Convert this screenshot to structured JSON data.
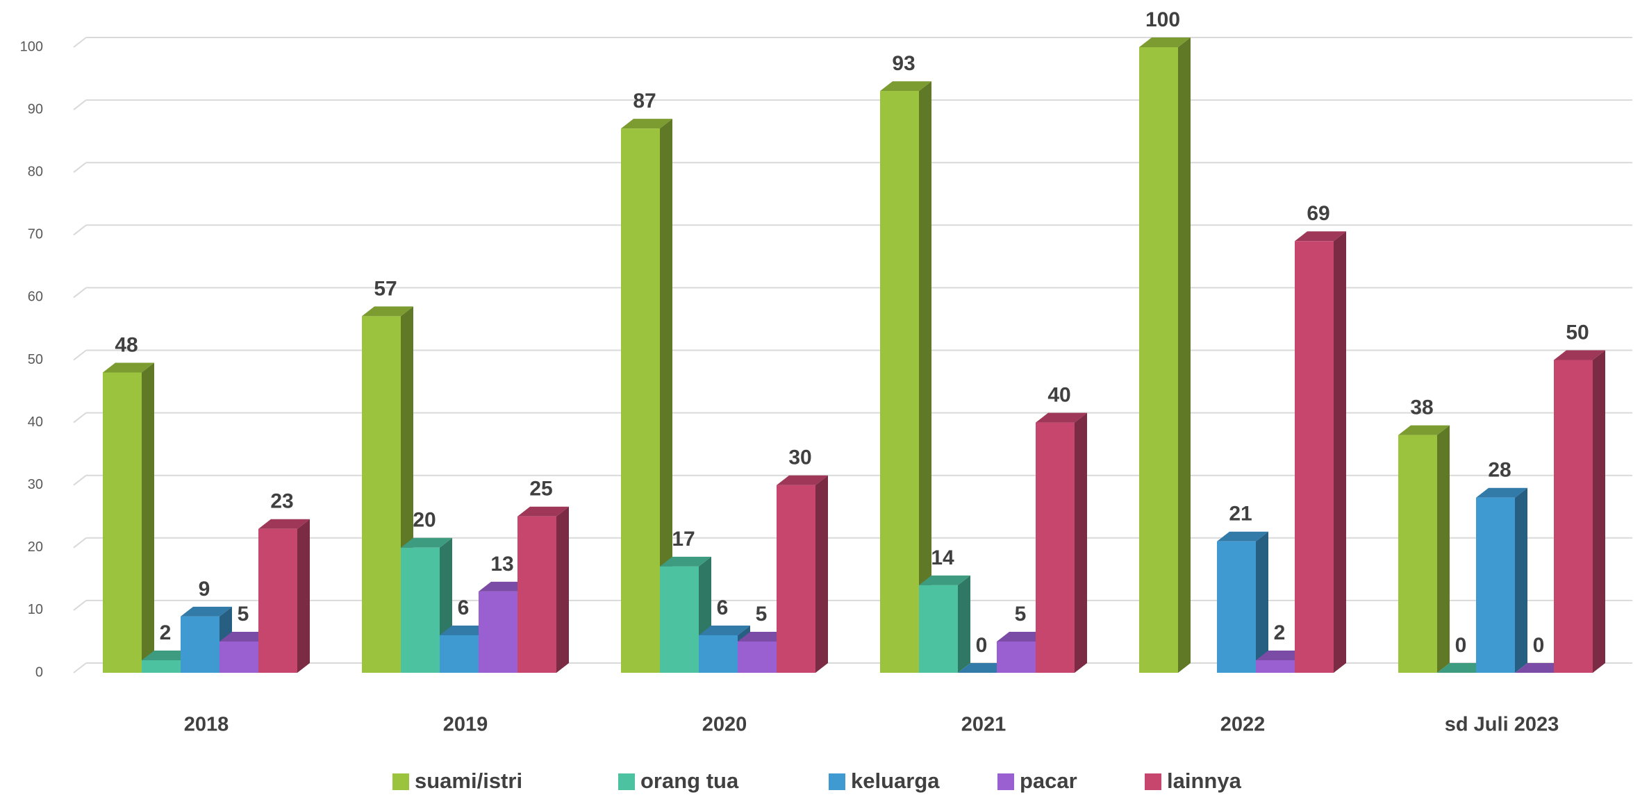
{
  "chart_data": {
    "type": "bar3d",
    "categories": [
      "2018",
      "2019",
      "2020",
      "2021",
      "2022",
      "sd Juli 2023"
    ],
    "series": [
      {
        "name": "suami/istri",
        "color": "#9bc33d",
        "values": [
          48,
          57,
          87,
          93,
          100,
          38
        ]
      },
      {
        "name": "orang tua",
        "color": "#4cc2a0",
        "values": [
          2,
          20,
          17,
          14,
          null,
          0
        ]
      },
      {
        "name": "keluarga",
        "color": "#3f9ad2",
        "values": [
          9,
          6,
          6,
          0,
          21,
          28
        ]
      },
      {
        "name": "pacar",
        "color": "#9a5fd0",
        "values": [
          5,
          13,
          5,
          5,
          2,
          0
        ]
      },
      {
        "name": "lainnya",
        "color": "#c7466e",
        "values": [
          23,
          25,
          30,
          40,
          69,
          50
        ]
      }
    ],
    "ylim": [
      0,
      100
    ],
    "yticks": [
      0,
      10,
      20,
      30,
      40,
      50,
      60,
      70,
      80,
      90,
      100
    ],
    "grid": true,
    "legend": "bottom"
  }
}
